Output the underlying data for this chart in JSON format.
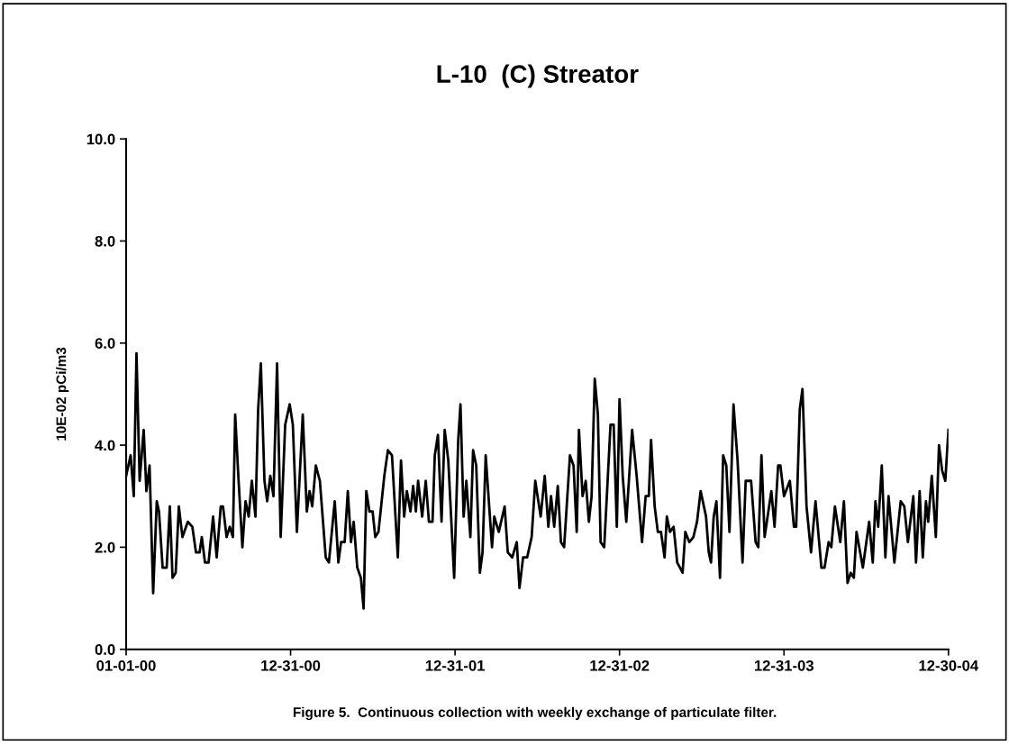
{
  "chart_data": {
    "type": "line",
    "title": "L-10  (C) Streator",
    "ylabel": "10E-02 pCi/m3",
    "annotations": [
      "Figure 5.  Continuous collection with weekly exchange of particulate filter."
    ],
    "x": [
      "2000-01-01",
      "2000-01-11",
      "2000-01-18",
      "2000-01-24",
      "2000-01-31",
      "2000-02-09",
      "2000-02-15",
      "2000-02-22",
      "2000-03-01",
      "2000-03-09",
      "2000-03-14",
      "2000-03-22",
      "2000-03-31",
      "2000-04-07",
      "2000-04-13",
      "2000-04-20",
      "2000-04-27",
      "2000-05-05",
      "2000-05-17",
      "2000-05-27",
      "2000-06-04",
      "2000-06-12",
      "2000-06-17",
      "2000-06-24",
      "2000-07-02",
      "2000-07-12",
      "2000-07-20",
      "2000-07-29",
      "2000-08-03",
      "2000-08-11",
      "2000-08-18",
      "2000-08-25",
      "2000-08-30",
      "2000-09-06",
      "2000-09-15",
      "2000-09-22",
      "2000-09-29",
      "2000-10-06",
      "2000-10-14",
      "2000-10-20",
      "2000-10-26",
      "2000-11-03",
      "2000-11-09",
      "2000-11-16",
      "2000-11-23",
      "2000-12-01",
      "2000-12-09",
      "2000-12-19",
      "2000-12-29",
      "2001-01-05",
      "2001-01-14",
      "2001-01-27",
      "2001-02-05",
      "2001-02-11",
      "2001-02-17",
      "2001-02-25",
      "2001-03-06",
      "2001-03-19",
      "2001-03-26",
      "2001-04-08",
      "2001-04-16",
      "2001-04-22",
      "2001-04-30",
      "2001-05-07",
      "2001-05-14",
      "2001-05-20",
      "2001-05-28",
      "2001-06-05",
      "2001-06-11",
      "2001-06-17",
      "2001-06-24",
      "2001-07-01",
      "2001-07-07",
      "2001-07-14",
      "2001-07-27",
      "2001-08-04",
      "2001-08-13",
      "2001-08-26",
      "2001-09-02",
      "2001-09-09",
      "2001-09-15",
      "2001-09-23",
      "2001-09-29",
      "2001-10-05",
      "2001-10-10",
      "2001-10-19",
      "2001-10-27",
      "2001-11-03",
      "2001-11-11",
      "2001-11-16",
      "2001-11-23",
      "2001-12-01",
      "2001-12-08",
      "2001-12-16",
      "2001-12-29",
      "2002-01-07",
      "2002-01-12",
      "2002-01-19",
      "2002-01-25",
      "2002-02-03",
      "2002-02-09",
      "2002-02-16",
      "2002-02-24",
      "2002-03-02",
      "2002-03-09",
      "2002-03-23",
      "2002-03-28",
      "2002-04-07",
      "2002-04-20",
      "2002-04-27",
      "2002-05-07",
      "2002-05-17",
      "2002-05-23",
      "2002-05-31",
      "2002-06-09",
      "2002-06-19",
      "2002-06-27",
      "2002-07-09",
      "2002-07-18",
      "2002-07-26",
      "2002-08-01",
      "2002-08-08",
      "2002-08-16",
      "2002-08-23",
      "2002-08-30",
      "2002-09-12",
      "2002-09-20",
      "2002-09-27",
      "2002-10-02",
      "2002-10-10",
      "2002-10-17",
      "2002-10-24",
      "2002-10-30",
      "2002-11-06",
      "2002-11-13",
      "2002-11-19",
      "2002-11-27",
      "2002-12-11",
      "2002-12-18",
      "2002-12-25",
      "2002-12-31",
      "2003-01-07",
      "2003-01-15",
      "2003-01-28",
      "2003-02-07",
      "2003-02-19",
      "2003-02-27",
      "2003-03-06",
      "2003-03-11",
      "2003-03-19",
      "2003-03-26",
      "2003-04-02",
      "2003-04-10",
      "2003-04-15",
      "2003-04-22",
      "2003-04-30",
      "2003-05-08",
      "2003-05-20",
      "2003-05-26",
      "2003-06-04",
      "2003-06-13",
      "2003-06-21",
      "2003-06-29",
      "2003-07-11",
      "2003-07-17",
      "2003-07-22",
      "2003-07-28",
      "2003-08-03",
      "2003-08-11",
      "2003-08-18",
      "2003-08-25",
      "2003-09-01",
      "2003-09-10",
      "2003-09-19",
      "2003-09-30",
      "2003-10-07",
      "2003-10-19",
      "2003-10-29",
      "2003-11-04",
      "2003-11-11",
      "2003-11-18",
      "2003-12-03",
      "2003-12-10",
      "2003-12-18",
      "2003-12-23",
      "2003-12-31",
      "2004-01-13",
      "2004-01-22",
      "2004-01-27",
      "2004-02-04",
      "2004-02-10",
      "2004-02-19",
      "2004-02-29",
      "2004-03-10",
      "2004-03-23",
      "2004-03-30",
      "2004-04-08",
      "2004-04-14",
      "2004-04-22",
      "2004-05-04",
      "2004-05-12",
      "2004-05-20",
      "2004-05-27",
      "2004-06-03",
      "2004-06-09",
      "2004-06-23",
      "2004-07-07",
      "2004-07-15",
      "2004-07-21",
      "2004-07-27",
      "2004-08-04",
      "2004-08-12",
      "2004-08-19",
      "2004-09-01",
      "2004-09-15",
      "2004-09-23",
      "2004-10-01",
      "2004-10-13",
      "2004-10-19",
      "2004-10-27",
      "2004-11-03",
      "2004-11-10",
      "2004-11-15",
      "2004-11-23",
      "2004-12-02",
      "2004-12-09",
      "2004-12-16",
      "2004-12-23",
      "2004-12-30"
    ],
    "series": [
      {
        "color": "#000000",
        "values": [
          3.4,
          3.8,
          3.0,
          5.8,
          3.3,
          4.3,
          3.1,
          3.6,
          1.1,
          2.9,
          2.7,
          1.6,
          1.6,
          2.8,
          1.4,
          1.5,
          2.8,
          2.2,
          2.5,
          2.4,
          1.9,
          1.9,
          2.2,
          1.7,
          1.7,
          2.6,
          1.8,
          2.8,
          2.8,
          2.2,
          2.4,
          2.2,
          4.6,
          3.4,
          2.0,
          2.9,
          2.6,
          3.3,
          2.6,
          4.7,
          5.6,
          3.3,
          2.9,
          3.4,
          3.0,
          5.6,
          2.2,
          4.4,
          4.8,
          4.4,
          2.3,
          4.6,
          2.7,
          3.1,
          2.8,
          3.6,
          3.3,
          1.8,
          1.7,
          2.9,
          1.7,
          2.1,
          2.1,
          3.1,
          2.1,
          2.5,
          1.6,
          1.4,
          0.8,
          3.1,
          2.7,
          2.7,
          2.2,
          2.3,
          3.4,
          3.9,
          3.8,
          1.8,
          3.7,
          2.6,
          3.1,
          2.7,
          3.2,
          2.7,
          3.3,
          2.6,
          3.3,
          2.5,
          2.5,
          3.8,
          4.2,
          2.5,
          4.3,
          3.7,
          1.4,
          4.1,
          4.8,
          2.6,
          3.3,
          2.2,
          3.9,
          3.6,
          1.5,
          1.9,
          3.8,
          2.0,
          2.6,
          2.3,
          2.8,
          1.9,
          1.8,
          2.1,
          1.2,
          1.8,
          1.8,
          2.2,
          3.3,
          2.6,
          3.4,
          2.4,
          3.0,
          2.4,
          3.2,
          2.1,
          2.0,
          3.8,
          3.6,
          2.3,
          4.3,
          3.0,
          3.3,
          2.5,
          3.0,
          5.3,
          4.6,
          2.1,
          2.0,
          4.4,
          4.4,
          2.4,
          4.9,
          3.4,
          2.5,
          4.3,
          3.4,
          2.1,
          3.0,
          3.0,
          4.1,
          2.8,
          2.3,
          2.3,
          1.8,
          2.6,
          2.3,
          2.4,
          1.7,
          1.5,
          2.3,
          2.1,
          2.2,
          2.5,
          3.1,
          2.6,
          1.9,
          1.7,
          2.6,
          2.9,
          1.4,
          3.8,
          3.6,
          2.3,
          4.8,
          3.7,
          1.7,
          3.3,
          3.3,
          2.1,
          2.0,
          3.8,
          2.2,
          3.1,
          2.4,
          3.6,
          3.6,
          3.0,
          3.3,
          2.4,
          2.4,
          4.7,
          5.1,
          2.8,
          1.9,
          2.9,
          1.6,
          1.6,
          2.1,
          2.0,
          2.8,
          2.1,
          2.9,
          1.3,
          1.5,
          1.4,
          2.3,
          1.6,
          2.5,
          1.7,
          2.9,
          2.4,
          3.6,
          1.8,
          3.0,
          1.7,
          2.9,
          2.8,
          2.1,
          3.0,
          1.7,
          3.1,
          1.8,
          2.9,
          2.5,
          3.4,
          2.2,
          4.0,
          3.5,
          3.3,
          4.3
        ]
      }
    ],
    "xlim": [
      "2000-01-01",
      "2004-12-30"
    ],
    "xticks": [
      {
        "value": "2000-01-01",
        "label": "01-01-00"
      },
      {
        "value": "2000-12-31",
        "label": "12-31-00"
      },
      {
        "value": "2001-12-31",
        "label": "12-31-01"
      },
      {
        "value": "2002-12-31",
        "label": "12-31-02"
      },
      {
        "value": "2003-12-31",
        "label": "12-31-03"
      },
      {
        "value": "2004-12-30",
        "label": "12-30-04"
      }
    ],
    "ylim": [
      0,
      10
    ],
    "yticks": [
      {
        "value": 0,
        "label": "0.0"
      },
      {
        "value": 2,
        "label": "2.0"
      },
      {
        "value": 4,
        "label": "4.0"
      },
      {
        "value": 6,
        "label": "6.0"
      },
      {
        "value": 8,
        "label": "8.0"
      },
      {
        "value": 10,
        "label": "10.0"
      }
    ],
    "grid": false,
    "marker": "none",
    "line_style": "solid"
  }
}
